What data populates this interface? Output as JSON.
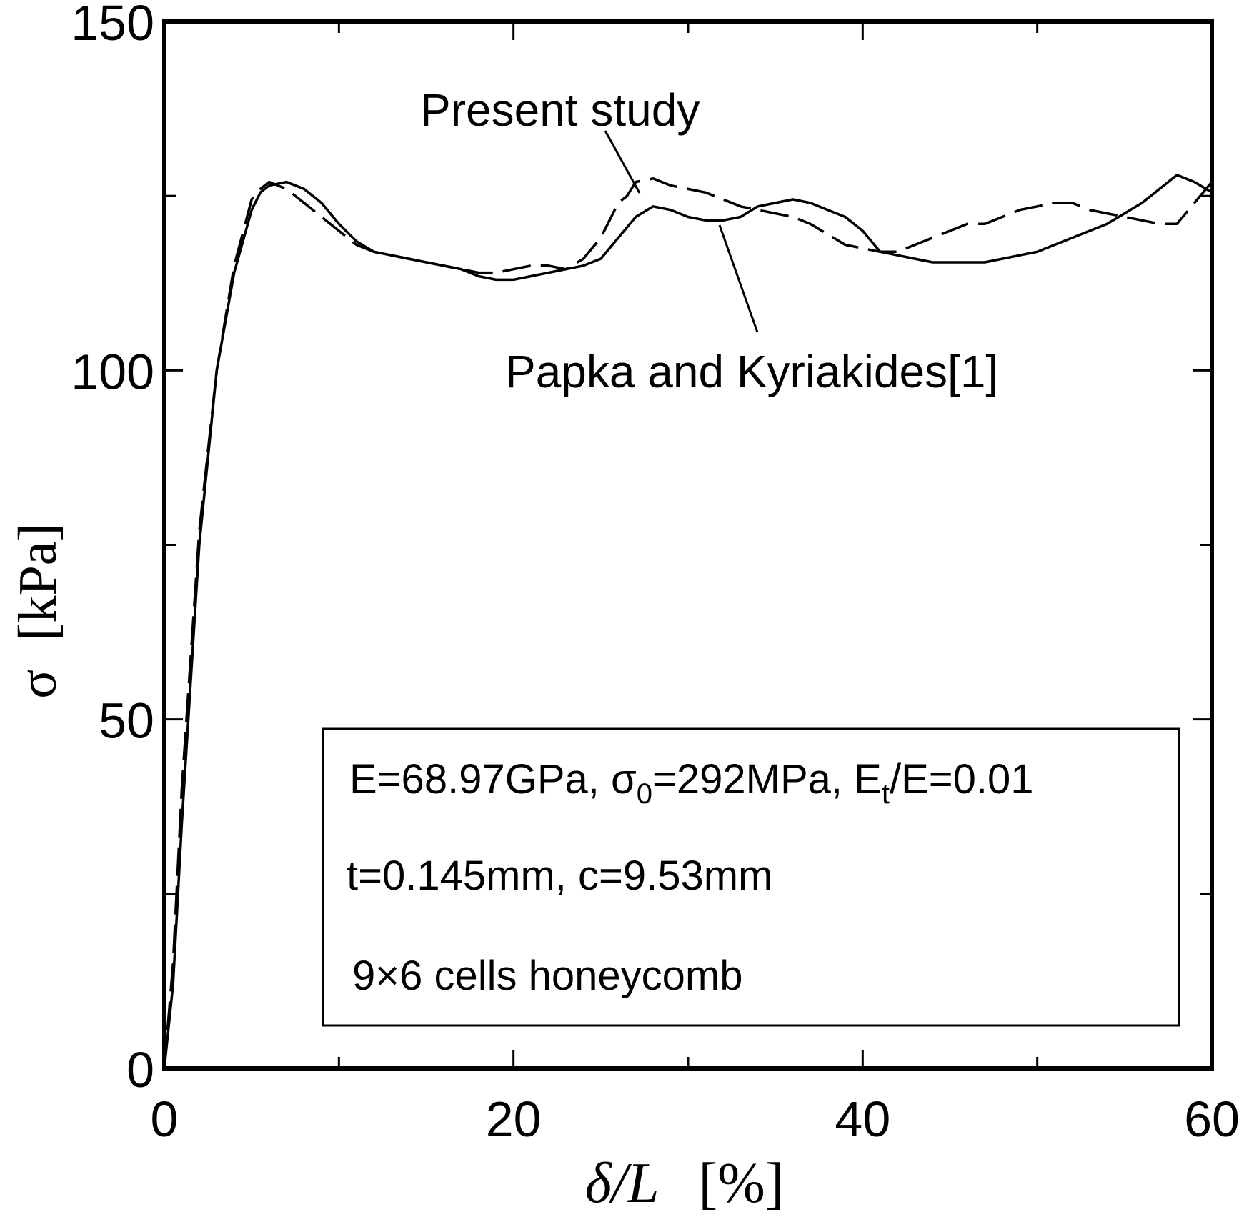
{
  "chart_data": {
    "type": "line",
    "xlabel": "δ/L [%]",
    "xlabel_parts": {
      "main": "δ/L",
      "unit": "[%]"
    },
    "ylabel": "σ [kPa]",
    "ylabel_parts": {
      "main": "σ",
      "unit": "[kPa]"
    },
    "xlim": [
      0,
      60
    ],
    "ylim": [
      0,
      150
    ],
    "x_major_ticks": [
      0,
      20,
      40,
      60
    ],
    "x_tick_labels": [
      "0",
      "20",
      "40",
      "60"
    ],
    "x_minor_ticks": [
      10,
      30,
      50
    ],
    "y_major_ticks": [
      0,
      50,
      100,
      150
    ],
    "y_tick_labels": [
      "0",
      "50",
      "100",
      "150"
    ],
    "y_minor_ticks": [
      25,
      75,
      125
    ],
    "grid": false,
    "series": [
      {
        "name": "Present study",
        "style": "dashed",
        "x": [
          0,
          0.5,
          1,
          2,
          3,
          4,
          5,
          5.5,
          6,
          7,
          8,
          9,
          10,
          11,
          12,
          13,
          14,
          15,
          16,
          17,
          18,
          19,
          20,
          21,
          22,
          23,
          24,
          25,
          26,
          26.5,
          27,
          28,
          29,
          30,
          31,
          32,
          33,
          34,
          35,
          36,
          37,
          38,
          39,
          40,
          41,
          42,
          43,
          44,
          45,
          46,
          47,
          48,
          49,
          50,
          51,
          52,
          53,
          54,
          55,
          56,
          57,
          58,
          59,
          60
        ],
        "y": [
          0,
          15,
          40,
          77,
          100,
          115,
          124.5,
          126,
          127,
          126,
          124,
          122,
          120,
          118,
          117,
          116.5,
          116,
          115.5,
          115,
          114.5,
          114,
          114,
          114.5,
          115,
          115,
          114.5,
          116,
          119,
          124,
          125,
          127,
          127.5,
          126.5,
          126,
          125.5,
          124.5,
          123.5,
          123,
          122.5,
          122,
          121,
          119.5,
          118,
          117.5,
          117,
          117,
          118,
          119,
          120,
          121,
          121,
          122,
          123,
          123.5,
          124,
          124,
          123,
          122.5,
          122,
          121.5,
          121,
          121,
          124,
          127
        ]
      },
      {
        "name": "Papka and Kyriakides[1]",
        "style": "solid",
        "x": [
          0,
          0.5,
          1,
          2,
          3,
          4,
          5,
          5.5,
          6,
          7,
          8,
          9,
          10,
          11,
          12,
          13,
          14,
          15,
          16,
          17,
          18,
          19,
          20,
          21,
          22,
          23,
          24,
          25,
          26,
          27,
          28,
          29,
          30,
          31,
          32,
          33,
          34,
          35,
          36,
          37,
          38,
          39,
          40,
          41,
          42,
          43,
          44,
          45,
          46,
          47,
          48,
          49,
          50,
          51,
          52,
          53,
          54,
          55,
          56,
          57,
          58,
          59,
          60
        ],
        "y": [
          0,
          12,
          35,
          75,
          100,
          114,
          123,
          125.5,
          126.5,
          127,
          126,
          124,
          121,
          118.5,
          117,
          116.5,
          116,
          115.5,
          115,
          114.5,
          113.5,
          113,
          113,
          113.5,
          114,
          114.5,
          115,
          116,
          119,
          122,
          123.5,
          123,
          122,
          121.5,
          121.5,
          122,
          123.5,
          124,
          124.5,
          124,
          123,
          122,
          120,
          117,
          116.5,
          116,
          115.5,
          115.5,
          115.5,
          115.5,
          116,
          116.5,
          117,
          118,
          119,
          120,
          121,
          122.5,
          124,
          126,
          128,
          127,
          125.5
        ]
      }
    ],
    "annotations": [
      {
        "text": "Present study",
        "points_to_series": "Present study"
      },
      {
        "text": "Papka and Kyriakides[1]",
        "points_to_series": "Papka and Kyriakides[1]"
      }
    ],
    "infobox": {
      "line1": {
        "a": "E=68.97GPa, σ",
        "a_sub": "0",
        "b": "=292MPa, E",
        "b_sub": "t",
        "c": "/E=0.01"
      },
      "line2": "t=0.145mm, c=9.53mm",
      "line3": "9×6 cells honeycomb",
      "placement": "bottom-right"
    }
  }
}
